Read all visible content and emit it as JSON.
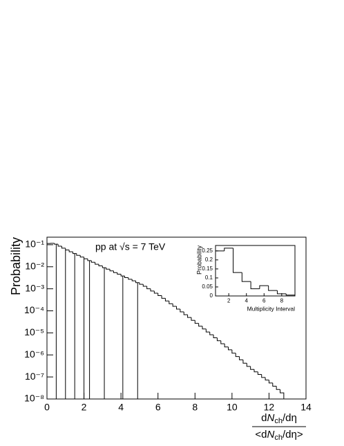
{
  "chart_data": [
    {
      "type": "histogram",
      "y_label": "Probability",
      "x_label": {
        "numerator": [
          "d",
          "N",
          "ch",
          "/dη"
        ],
        "denominator": [
          "<d",
          "N",
          "ch",
          "/dη>"
        ]
      },
      "annotation": "pp at √s = 7 TeV",
      "annotation_color": "#8b0000",
      "color": "#000000",
      "log_y": true,
      "bins": [
        0,
        0.2,
        0.4,
        0.6,
        0.8,
        1,
        1.2,
        1.4,
        1.6,
        1.8,
        2,
        2.2,
        2.4,
        2.6,
        2.8,
        3,
        3.2,
        3.4,
        3.6,
        3.8,
        4,
        4.2,
        4.4,
        4.6,
        4.8,
        5,
        5.2,
        5.4,
        5.6,
        5.8,
        6,
        6.2,
        6.4,
        6.6,
        6.8,
        7,
        7.2,
        7.4,
        7.6,
        7.8,
        8,
        8.2,
        8.4,
        8.6,
        8.8,
        9,
        9.2,
        9.4,
        9.6,
        9.8,
        10,
        10.2,
        10.4,
        10.6,
        10.8,
        11,
        11.2,
        11.4,
        11.6,
        11.8,
        12,
        12.2,
        12.4,
        12.6,
        12.8
      ],
      "values": [
        0.114,
        0.116,
        0.106,
        0.086,
        0.07,
        0.058,
        0.048,
        0.04,
        0.033,
        0.0275,
        0.023,
        0.019,
        0.016,
        0.013,
        0.011,
        0.0091,
        0.0078,
        0.0065,
        0.0054,
        0.0046,
        0.0038,
        0.0032,
        0.0027,
        0.0023,
        0.0019,
        0.0016,
        0.0013,
        0.001,
        0.00079,
        0.00063,
        0.00049,
        0.00037,
        0.00028,
        0.00021,
        0.00016,
        0.00012,
        9e-05,
        6.7e-05,
        5e-05,
        3.7e-05,
        2.7e-05,
        2e-05,
        1.5e-05,
        1.1e-05,
        8.2e-06,
        6e-06,
        4.4e-06,
        3.2e-06,
        2.3e-06,
        1.7e-06,
        1.2e-06,
        8.4e-07,
        6e-07,
        4.2e-07,
        3e-07,
        2.2e-07,
        1.7e-07,
        1.3e-07,
        9.5e-08,
        7.2e-08,
        5.3e-08,
        3.8e-08,
        2.7e-08,
        1.9e-08
      ],
      "interval_edges": [
        0.5,
        1.0,
        1.5,
        2.0,
        2.3,
        3.1,
        4.1,
        4.9
      ],
      "xlim": [
        0,
        14
      ],
      "ylim": [
        1e-08,
        0.22
      ],
      "xticks": [
        0,
        2,
        4,
        6,
        8,
        10,
        12,
        14
      ],
      "yticks": [
        {
          "value": 0.1,
          "label": "10⁻¹"
        },
        {
          "value": 0.01,
          "label": "10⁻²"
        },
        {
          "value": 0.001,
          "label": "10⁻³"
        },
        {
          "value": 0.0001,
          "label": "10⁻⁴"
        },
        {
          "value": 1e-05,
          "label": "10⁻⁵"
        },
        {
          "value": 1e-06,
          "label": "10⁻⁶"
        },
        {
          "value": 1e-07,
          "label": "10⁻⁷"
        },
        {
          "value": 1e-08,
          "label": "10⁻⁸"
        }
      ]
    },
    {
      "type": "histogram",
      "x_label": "Multiplicity Interval",
      "y_label": "Probability",
      "color": "#000000",
      "log_y": false,
      "bins": [
        0.5,
        1.5,
        2.5,
        3.5,
        4.5,
        5.5,
        6.5,
        7.5,
        8.5,
        9.5
      ],
      "values": [
        0.25,
        0.265,
        0.13,
        0.08,
        0.04,
        0.057,
        0.03,
        0.012,
        0.005
      ],
      "xlim": [
        0.5,
        9.5
      ],
      "ylim": [
        0,
        0.28
      ],
      "xticks": [
        2,
        4,
        6,
        8
      ],
      "yticks": [
        0,
        0.05,
        0.1,
        0.15,
        0.2,
        0.25
      ]
    }
  ]
}
